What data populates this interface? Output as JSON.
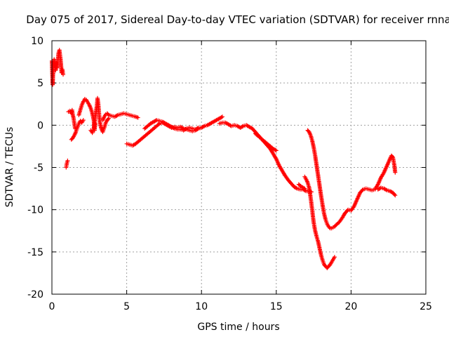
{
  "chart_data": {
    "type": "scatter",
    "title": "Day 075 of 2017, Sidereal Day-to-day VTEC variation (SDTVAR) for receiver rnna",
    "xlabel": "GPS time / hours",
    "ylabel": "SDTVAR / TECUs",
    "xlim": [
      0,
      25
    ],
    "ylim": [
      -20,
      10
    ],
    "xticks": [
      0,
      5,
      10,
      15,
      20,
      25
    ],
    "yticks": [
      -20,
      -15,
      -10,
      -5,
      0,
      5,
      10
    ],
    "xtick_labels": [
      "0",
      "5",
      "10",
      "15",
      "20",
      "25"
    ],
    "ytick_labels": [
      "-20",
      "-15",
      "-10",
      "-5",
      "0",
      "5",
      "10"
    ],
    "grid": true,
    "marker": "+",
    "series": [
      {
        "name": "SDTVAR",
        "color": "#ff0000",
        "segments": [
          [
            [
              0.0,
              7.6
            ],
            [
              0.05,
              4.8
            ],
            [
              0.1,
              7.2
            ],
            [
              0.15,
              7.8
            ],
            [
              0.2,
              7.0
            ],
            [
              0.25,
              6.5
            ],
            [
              0.3,
              7.4
            ],
            [
              0.35,
              6.8
            ],
            [
              0.4,
              7.8
            ],
            [
              0.45,
              8.6
            ],
            [
              0.5,
              8.9
            ],
            [
              0.55,
              8.2
            ],
            [
              0.6,
              7.4
            ],
            [
              0.65,
              6.2
            ],
            [
              0.7,
              6.6
            ],
            [
              0.75,
              6.0
            ]
          ],
          [
            [
              0.95,
              -5.0
            ],
            [
              1.0,
              -4.5
            ],
            [
              1.05,
              -4.2
            ]
          ],
          [
            [
              1.1,
              1.6
            ],
            [
              1.2,
              1.7
            ],
            [
              1.3,
              1.4
            ],
            [
              1.35,
              1.8
            ],
            [
              1.4,
              1.2
            ],
            [
              1.45,
              0.8
            ],
            [
              1.5,
              0.2
            ],
            [
              1.55,
              -0.4
            ]
          ],
          [
            [
              1.3,
              -1.7
            ],
            [
              1.4,
              -1.5
            ],
            [
              1.5,
              -1.2
            ],
            [
              1.6,
              -0.8
            ],
            [
              1.7,
              -0.3
            ],
            [
              1.8,
              0.2
            ],
            [
              1.9,
              0.5
            ],
            [
              2.0,
              0.3
            ],
            [
              2.1,
              0.6
            ]
          ],
          [
            [
              1.8,
              1.2
            ],
            [
              1.9,
              1.8
            ],
            [
              2.0,
              2.4
            ],
            [
              2.1,
              2.8
            ],
            [
              2.2,
              3.1
            ],
            [
              2.3,
              3.0
            ],
            [
              2.4,
              2.7
            ],
            [
              2.5,
              2.4
            ],
            [
              2.6,
              2.0
            ],
            [
              2.7,
              1.4
            ],
            [
              2.8,
              0.6
            ],
            [
              2.85,
              -0.6
            ],
            [
              2.9,
              0.2
            ]
          ],
          [
            [
              2.6,
              -0.6
            ],
            [
              2.7,
              -0.9
            ],
            [
              2.8,
              -0.4
            ],
            [
              2.9,
              1.0
            ],
            [
              3.0,
              2.2
            ],
            [
              3.05,
              3.2
            ],
            [
              3.1,
              2.5
            ],
            [
              3.15,
              1.4
            ],
            [
              3.2,
              0.4
            ],
            [
              3.3,
              -0.4
            ],
            [
              3.4,
              -0.8
            ],
            [
              3.5,
              -0.3
            ],
            [
              3.6,
              0.3
            ],
            [
              3.7,
              0.6
            ],
            [
              3.8,
              0.8
            ]
          ],
          [
            [
              3.4,
              0.6
            ],
            [
              3.5,
              1.0
            ],
            [
              3.6,
              1.3
            ],
            [
              3.7,
              1.4
            ],
            [
              3.8,
              1.2
            ],
            [
              4.0,
              1.1
            ],
            [
              4.2,
              1.0
            ],
            [
              4.4,
              1.2
            ],
            [
              4.6,
              1.3
            ],
            [
              4.8,
              1.4
            ],
            [
              5.0,
              1.3
            ],
            [
              5.2,
              1.2
            ],
            [
              5.4,
              1.1
            ],
            [
              5.6,
              1.0
            ],
            [
              5.75,
              0.9
            ]
          ],
          [
            [
              5.0,
              -2.2
            ],
            [
              5.2,
              -2.3
            ],
            [
              5.4,
              -2.4
            ],
            [
              5.6,
              -2.2
            ],
            [
              5.8,
              -1.9
            ],
            [
              6.0,
              -1.6
            ],
            [
              6.2,
              -1.3
            ],
            [
              6.4,
              -1.0
            ],
            [
              6.6,
              -0.7
            ],
            [
              6.8,
              -0.4
            ],
            [
              7.0,
              -0.1
            ],
            [
              7.2,
              0.2
            ],
            [
              7.4,
              0.3
            ],
            [
              7.6,
              0.1
            ],
            [
              7.8,
              -0.1
            ],
            [
              8.0,
              -0.3
            ],
            [
              8.2,
              -0.2
            ],
            [
              8.4,
              -0.3
            ],
            [
              8.6,
              -0.2
            ],
            [
              8.8,
              -0.4
            ],
            [
              9.0,
              -0.5
            ],
            [
              9.2,
              -0.6
            ],
            [
              9.4,
              -0.7
            ],
            [
              9.6,
              -0.6
            ],
            [
              9.8,
              -0.4
            ],
            [
              10.0,
              -0.3
            ],
            [
              10.2,
              -0.1
            ],
            [
              10.4,
              0.0
            ],
            [
              10.6,
              0.2
            ],
            [
              10.8,
              0.4
            ],
            [
              11.0,
              0.6
            ],
            [
              11.2,
              0.8
            ],
            [
              11.4,
              1.0
            ]
          ],
          [
            [
              6.2,
              -0.4
            ],
            [
              6.4,
              -0.1
            ],
            [
              6.6,
              0.2
            ],
            [
              6.8,
              0.4
            ],
            [
              7.0,
              0.6
            ],
            [
              7.2,
              0.5
            ],
            [
              7.4,
              0.4
            ],
            [
              7.6,
              0.2
            ],
            [
              7.8,
              0.0
            ],
            [
              8.0,
              -0.2
            ],
            [
              8.2,
              -0.4
            ],
            [
              8.4,
              -0.5
            ],
            [
              8.6,
              -0.5
            ],
            [
              8.8,
              -0.6
            ],
            [
              9.0,
              -0.4
            ],
            [
              9.2,
              -0.3
            ],
            [
              9.4,
              -0.4
            ],
            [
              9.6,
              -0.5
            ],
            [
              9.8,
              -0.3
            ]
          ],
          [
            [
              11.2,
              0.2
            ],
            [
              11.4,
              0.3
            ],
            [
              11.6,
              0.3
            ],
            [
              11.8,
              0.1
            ],
            [
              12.0,
              -0.1
            ],
            [
              12.2,
              0.0
            ],
            [
              12.4,
              -0.1
            ],
            [
              12.6,
              -0.3
            ],
            [
              12.8,
              -0.1
            ],
            [
              13.0,
              0.0
            ],
            [
              13.2,
              -0.2
            ],
            [
              13.4,
              -0.4
            ],
            [
              13.6,
              -0.8
            ],
            [
              13.8,
              -1.2
            ],
            [
              14.0,
              -1.6
            ],
            [
              14.2,
              -2.0
            ],
            [
              14.4,
              -2.4
            ],
            [
              14.6,
              -2.8
            ],
            [
              14.8,
              -3.4
            ],
            [
              15.0,
              -4.0
            ],
            [
              15.2,
              -4.8
            ],
            [
              15.4,
              -5.4
            ],
            [
              15.6,
              -6.0
            ],
            [
              15.8,
              -6.5
            ],
            [
              16.0,
              -6.9
            ],
            [
              16.2,
              -7.3
            ],
            [
              16.4,
              -7.5
            ],
            [
              16.6,
              -7.6
            ],
            [
              16.8,
              -7.6
            ],
            [
              17.0,
              -7.8
            ],
            [
              17.2,
              -7.8
            ],
            [
              17.35,
              -7.9
            ]
          ],
          [
            [
              13.6,
              -1.0
            ],
            [
              13.8,
              -1.3
            ],
            [
              14.0,
              -1.6
            ],
            [
              14.2,
              -1.9
            ],
            [
              14.4,
              -2.2
            ],
            [
              14.6,
              -2.5
            ],
            [
              14.8,
              -2.8
            ],
            [
              15.0,
              -3.0
            ]
          ],
          [
            [
              16.5,
              -7.0
            ],
            [
              16.7,
              -7.3
            ],
            [
              16.9,
              -7.5
            ]
          ],
          [
            [
              16.9,
              -6.1
            ],
            [
              17.0,
              -6.4
            ],
            [
              17.1,
              -6.8
            ],
            [
              17.2,
              -7.4
            ],
            [
              17.3,
              -8.6
            ],
            [
              17.4,
              -10.0
            ],
            [
              17.5,
              -11.5
            ],
            [
              17.6,
              -12.5
            ],
            [
              17.7,
              -13.2
            ],
            [
              17.8,
              -13.8
            ],
            [
              17.9,
              -14.6
            ],
            [
              18.0,
              -15.4
            ],
            [
              18.1,
              -16.0
            ],
            [
              18.2,
              -16.5
            ],
            [
              18.3,
              -16.7
            ],
            [
              18.4,
              -16.9
            ],
            [
              18.5,
              -16.7
            ],
            [
              18.6,
              -16.5
            ],
            [
              18.7,
              -16.2
            ],
            [
              18.8,
              -15.9
            ],
            [
              18.9,
              -15.6
            ]
          ],
          [
            [
              17.1,
              -0.6
            ],
            [
              17.2,
              -0.8
            ],
            [
              17.3,
              -1.2
            ],
            [
              17.4,
              -1.8
            ],
            [
              17.5,
              -2.6
            ],
            [
              17.6,
              -3.6
            ],
            [
              17.7,
              -4.8
            ],
            [
              17.8,
              -6.0
            ],
            [
              17.9,
              -7.2
            ],
            [
              18.0,
              -8.4
            ],
            [
              18.1,
              -9.5
            ],
            [
              18.2,
              -10.5
            ],
            [
              18.3,
              -11.2
            ],
            [
              18.4,
              -11.7
            ],
            [
              18.5,
              -12.0
            ],
            [
              18.6,
              -12.2
            ],
            [
              18.7,
              -12.2
            ],
            [
              18.8,
              -12.1
            ],
            [
              18.9,
              -12.0
            ],
            [
              19.0,
              -11.8
            ],
            [
              19.2,
              -11.5
            ],
            [
              19.4,
              -11.0
            ],
            [
              19.6,
              -10.4
            ],
            [
              19.8,
              -10.0
            ],
            [
              20.0,
              -10.1
            ],
            [
              20.2,
              -9.6
            ],
            [
              20.4,
              -8.8
            ],
            [
              20.6,
              -8.0
            ],
            [
              20.8,
              -7.6
            ],
            [
              21.0,
              -7.5
            ],
            [
              21.2,
              -7.6
            ],
            [
              21.4,
              -7.7
            ],
            [
              21.6,
              -7.6
            ],
            [
              21.8,
              -7.0
            ],
            [
              22.0,
              -6.2
            ],
            [
              22.2,
              -5.6
            ],
            [
              22.4,
              -4.8
            ],
            [
              22.6,
              -4.0
            ],
            [
              22.7,
              -3.6
            ],
            [
              22.8,
              -3.8
            ],
            [
              22.9,
              -4.8
            ],
            [
              22.95,
              -5.6
            ]
          ],
          [
            [
              21.8,
              -7.6
            ],
            [
              22.0,
              -7.4
            ],
            [
              22.2,
              -7.5
            ],
            [
              22.4,
              -7.7
            ],
            [
              22.6,
              -7.8
            ],
            [
              22.8,
              -8.0
            ],
            [
              22.95,
              -8.3
            ]
          ]
        ]
      }
    ]
  }
}
